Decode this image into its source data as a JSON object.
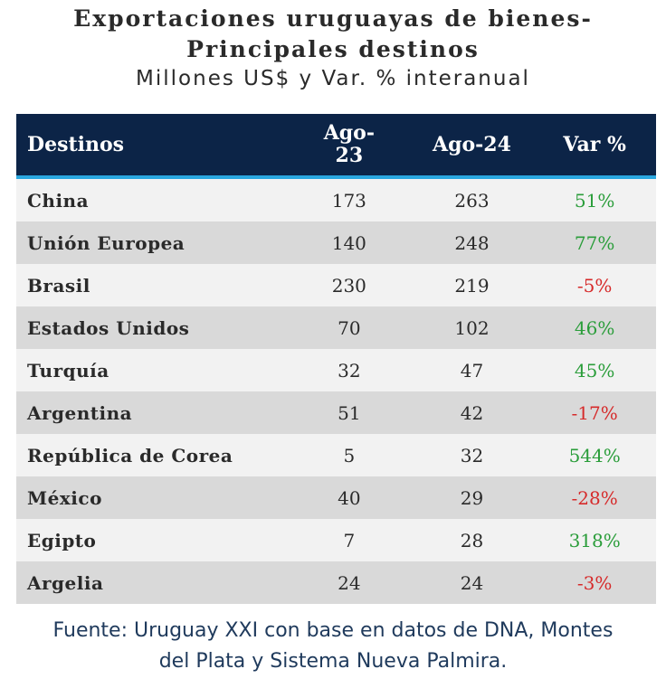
{
  "title_line1": "Exportaciones uruguayas de bienes-",
  "title_line2": "Principales destinos",
  "subtitle": "Millones US$ y Var. % interanual",
  "source_line1": "Fuente: Uruguay XXI con base en datos de DNA, Montes",
  "source_line2": "del Plata y Sistema Nueva Palmira.",
  "colors": {
    "header_bg": "#0c2447",
    "header_rule": "#2aa7df",
    "positive": "#2a9d3a",
    "negative": "#d62a2a",
    "row_light": "#f2f2f2",
    "row_dark": "#d9d9d9"
  },
  "chart_data": {
    "type": "table",
    "columns": [
      "Destinos",
      "Ago-23",
      "Ago-24",
      "Var %"
    ],
    "rows": [
      {
        "destino": "China",
        "ago23": "173",
        "ago24": "263",
        "var": "51%"
      },
      {
        "destino": "Unión Europea",
        "ago23": "140",
        "ago24": "248",
        "var": "77%"
      },
      {
        "destino": "Brasil",
        "ago23": "230",
        "ago24": "219",
        "var": "-5%"
      },
      {
        "destino": "Estados Unidos",
        "ago23": "70",
        "ago24": "102",
        "var": "46%"
      },
      {
        "destino": "Turquía",
        "ago23": "32",
        "ago24": "47",
        "var": "45%"
      },
      {
        "destino": "Argentina",
        "ago23": "51",
        "ago24": "42",
        "var": "-17%"
      },
      {
        "destino": "República de Corea",
        "ago23": "5",
        "ago24": "32",
        "var": "544%"
      },
      {
        "destino": "México",
        "ago23": "40",
        "ago24": "29",
        "var": "-28%"
      },
      {
        "destino": "Egipto",
        "ago23": "7",
        "ago24": "28",
        "var": "318%"
      },
      {
        "destino": "Argelia",
        "ago23": "24",
        "ago24": "24",
        "var": "-3%"
      }
    ]
  }
}
